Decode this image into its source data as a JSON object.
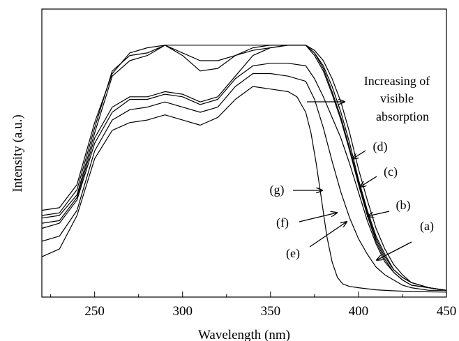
{
  "chart_data": {
    "type": "line",
    "title": "",
    "xlabel": "Wavelength (nm)",
    "ylabel": "Intensity (a.u.)",
    "xlim": [
      220,
      450
    ],
    "ylim": [
      0,
      1.0
    ],
    "xticks": [
      "250",
      "300",
      "350",
      "400",
      "450"
    ],
    "y_tick_labels_shown": false,
    "grid": false,
    "annotation": {
      "text": [
        "Increasing of",
        "visible",
        "absorption"
      ]
    },
    "series": [
      {
        "name": "(a)",
        "x": [
          220,
          230,
          240,
          250,
          260,
          270,
          280,
          290,
          300,
          310,
          320,
          330,
          340,
          350,
          360,
          370,
          375,
          380,
          385,
          390,
          395,
          400,
          405,
          410,
          415,
          420,
          425,
          430,
          440,
          450
        ],
        "y": [
          0.32,
          0.33,
          0.42,
          0.66,
          0.85,
          0.93,
          0.95,
          0.96,
          0.96,
          0.96,
          0.96,
          0.96,
          0.96,
          0.96,
          0.96,
          0.96,
          0.94,
          0.9,
          0.83,
          0.74,
          0.62,
          0.48,
          0.36,
          0.25,
          0.17,
          0.11,
          0.07,
          0.04,
          0.02,
          0.01
        ]
      },
      {
        "name": "(b)",
        "x": [
          220,
          230,
          240,
          250,
          260,
          270,
          280,
          290,
          300,
          310,
          320,
          330,
          340,
          350,
          360,
          370,
          375,
          380,
          385,
          390,
          395,
          400,
          405,
          410,
          415,
          420,
          425,
          430,
          440,
          450
        ],
        "y": [
          0.3,
          0.31,
          0.4,
          0.64,
          0.86,
          0.92,
          0.93,
          0.96,
          0.93,
          0.9,
          0.9,
          0.92,
          0.94,
          0.95,
          0.96,
          0.96,
          0.93,
          0.88,
          0.8,
          0.7,
          0.58,
          0.44,
          0.32,
          0.22,
          0.15,
          0.09,
          0.06,
          0.04,
          0.02,
          0.01
        ]
      },
      {
        "name": "(c)",
        "x": [
          220,
          230,
          240,
          250,
          260,
          270,
          280,
          290,
          300,
          310,
          320,
          330,
          340,
          350,
          360,
          370,
          375,
          380,
          385,
          390,
          395,
          400,
          405,
          410,
          415,
          420,
          425,
          430,
          440,
          450
        ],
        "y": [
          0.29,
          0.3,
          0.38,
          0.62,
          0.84,
          0.9,
          0.92,
          0.96,
          0.92,
          0.86,
          0.87,
          0.92,
          0.95,
          0.96,
          0.96,
          0.96,
          0.93,
          0.87,
          0.78,
          0.68,
          0.56,
          0.43,
          0.31,
          0.21,
          0.14,
          0.09,
          0.06,
          0.04,
          0.02,
          0.01
        ]
      },
      {
        "name": "(d)",
        "x": [
          220,
          230,
          240,
          250,
          260,
          270,
          280,
          290,
          300,
          310,
          320,
          330,
          340,
          350,
          360,
          370,
          375,
          380,
          385,
          390,
          395,
          400,
          405,
          410,
          415,
          420,
          425,
          430,
          440,
          450
        ],
        "y": [
          0.27,
          0.28,
          0.37,
          0.6,
          0.72,
          0.76,
          0.76,
          0.78,
          0.77,
          0.74,
          0.76,
          0.84,
          0.92,
          0.95,
          0.96,
          0.96,
          0.92,
          0.86,
          0.77,
          0.67,
          0.55,
          0.42,
          0.3,
          0.2,
          0.13,
          0.08,
          0.05,
          0.03,
          0.02,
          0.01
        ]
      },
      {
        "name": "(e)",
        "x": [
          220,
          230,
          240,
          250,
          260,
          270,
          280,
          290,
          300,
          310,
          320,
          330,
          340,
          350,
          360,
          370,
          375,
          380,
          385,
          390,
          395,
          400,
          405,
          410,
          415,
          420,
          425,
          430,
          440,
          450
        ],
        "y": [
          0.25,
          0.27,
          0.36,
          0.58,
          0.7,
          0.75,
          0.75,
          0.77,
          0.76,
          0.73,
          0.75,
          0.83,
          0.88,
          0.89,
          0.89,
          0.88,
          0.83,
          0.76,
          0.68,
          0.6,
          0.5,
          0.39,
          0.28,
          0.19,
          0.12,
          0.08,
          0.05,
          0.03,
          0.02,
          0.01
        ]
      },
      {
        "name": "(f)",
        "x": [
          220,
          230,
          240,
          250,
          260,
          270,
          280,
          290,
          300,
          310,
          320,
          330,
          340,
          350,
          360,
          370,
          375,
          380,
          385,
          390,
          395,
          400,
          405,
          410,
          415,
          420,
          425,
          430,
          440,
          450
        ],
        "y": [
          0.2,
          0.22,
          0.32,
          0.55,
          0.67,
          0.71,
          0.72,
          0.74,
          0.72,
          0.7,
          0.72,
          0.8,
          0.85,
          0.85,
          0.84,
          0.82,
          0.75,
          0.64,
          0.51,
          0.39,
          0.29,
          0.21,
          0.15,
          0.1,
          0.07,
          0.05,
          0.03,
          0.02,
          0.01,
          0.01
        ]
      },
      {
        "name": "(g)",
        "x": [
          220,
          230,
          240,
          250,
          260,
          270,
          280,
          290,
          300,
          310,
          320,
          330,
          340,
          350,
          360,
          365,
          370,
          373,
          376,
          379,
          382,
          385,
          388,
          391,
          395,
          400,
          410,
          420,
          430,
          450
        ],
        "y": [
          0.14,
          0.17,
          0.3,
          0.52,
          0.63,
          0.66,
          0.67,
          0.69,
          0.67,
          0.65,
          0.68,
          0.75,
          0.8,
          0.79,
          0.78,
          0.76,
          0.7,
          0.62,
          0.5,
          0.36,
          0.22,
          0.12,
          0.06,
          0.035,
          0.025,
          0.02,
          0.012,
          0.008,
          0.005,
          0.003
        ]
      }
    ]
  }
}
